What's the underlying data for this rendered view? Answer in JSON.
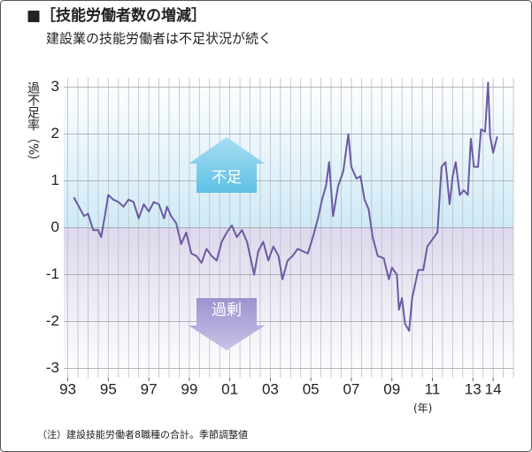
{
  "chart_data": {
    "type": "line",
    "title": "■［技能労働者数の増減］",
    "subtitle": "建設業の技能労働者は不足状況が続く",
    "ylabel": "過不足率（%）",
    "xunit": "(年)",
    "note": "（注）建設技能労働者8職種の合計。季節調整値",
    "annotations": [
      "不足",
      "過剰"
    ],
    "xlim": [
      1992.8,
      2015
    ],
    "ylim": [
      -3.2,
      3.2
    ],
    "yticks": [
      -3,
      -2,
      -1,
      0,
      1,
      2,
      3
    ],
    "xticks": [
      {
        "value": 1993,
        "label": "93"
      },
      {
        "value": 1995,
        "label": "95"
      },
      {
        "value": 1997,
        "label": "97"
      },
      {
        "value": 1999,
        "label": "99"
      },
      {
        "value": 2001,
        "label": "01"
      },
      {
        "value": 2003,
        "label": "03"
      },
      {
        "value": 2005,
        "label": "05"
      },
      {
        "value": 2007,
        "label": "07"
      },
      {
        "value": 2009,
        "label": "09"
      },
      {
        "value": 2011,
        "label": "11"
      },
      {
        "value": 2013,
        "label": "13"
      },
      {
        "value": 2014,
        "label": "14"
      }
    ],
    "grid": true,
    "x": [
      1993.3,
      1993.55,
      1993.8,
      1994.0,
      1994.25,
      1994.5,
      1994.65,
      1994.85,
      1995.0,
      1995.25,
      1995.5,
      1995.75,
      1996.0,
      1996.25,
      1996.5,
      1996.75,
      1997.0,
      1997.25,
      1997.5,
      1997.75,
      1997.9,
      1998.1,
      1998.35,
      1998.6,
      1998.85,
      1999.1,
      1999.35,
      1999.6,
      1999.85,
      2000.1,
      2000.35,
      2000.6,
      2000.85,
      2001.1,
      2001.35,
      2001.6,
      2001.85,
      2002.2,
      2002.4,
      2002.65,
      2002.9,
      2003.15,
      2003.4,
      2003.6,
      2003.85,
      2004.1,
      2004.35,
      2004.6,
      2004.85,
      2005.1,
      2005.35,
      2005.55,
      2005.75,
      2005.9,
      2006.1,
      2006.35,
      2006.6,
      2006.85,
      2007.0,
      2007.25,
      2007.45,
      2007.65,
      2007.85,
      2008.05,
      2008.3,
      2008.6,
      2008.85,
      2009.0,
      2009.25,
      2009.35,
      2009.5,
      2009.65,
      2009.85,
      2010.0,
      2010.3,
      2010.55,
      2010.75,
      2011.0,
      2011.25,
      2011.45,
      2011.65,
      2011.85,
      2012.0,
      2012.15,
      2012.35,
      2012.55,
      2012.75,
      2012.9,
      2013.05,
      2013.25,
      2013.4,
      2013.6,
      2013.75,
      2013.85,
      2014.0,
      2014.2
    ],
    "series": [
      {
        "name": "過不足率",
        "color": "#6b5aa3",
        "values": [
          0.65,
          0.45,
          0.25,
          0.3,
          -0.05,
          -0.05,
          -0.2,
          0.3,
          0.7,
          0.6,
          0.55,
          0.45,
          0.6,
          0.55,
          0.2,
          0.5,
          0.35,
          0.55,
          0.5,
          0.2,
          0.45,
          0.25,
          0.1,
          -0.35,
          -0.1,
          -0.55,
          -0.6,
          -0.75,
          -0.45,
          -0.6,
          -0.7,
          -0.3,
          -0.1,
          0.05,
          -0.2,
          -0.05,
          -0.3,
          -1.0,
          -0.5,
          -0.3,
          -0.7,
          -0.4,
          -0.6,
          -1.1,
          -0.7,
          -0.6,
          -0.45,
          -0.5,
          -0.55,
          -0.2,
          0.2,
          0.6,
          0.9,
          1.4,
          0.25,
          0.9,
          1.2,
          2.0,
          1.3,
          1.05,
          1.1,
          0.6,
          0.4,
          -0.2,
          -0.6,
          -0.65,
          -1.1,
          -0.85,
          -1.0,
          -1.75,
          -1.5,
          -2.05,
          -2.2,
          -1.5,
          -0.9,
          -0.9,
          -0.4,
          -0.25,
          -0.1,
          1.3,
          1.4,
          0.5,
          1.1,
          1.4,
          0.7,
          0.8,
          0.7,
          1.9,
          1.3,
          1.3,
          2.1,
          2.05,
          3.1,
          1.95,
          1.6,
          1.95
        ]
      }
    ]
  }
}
